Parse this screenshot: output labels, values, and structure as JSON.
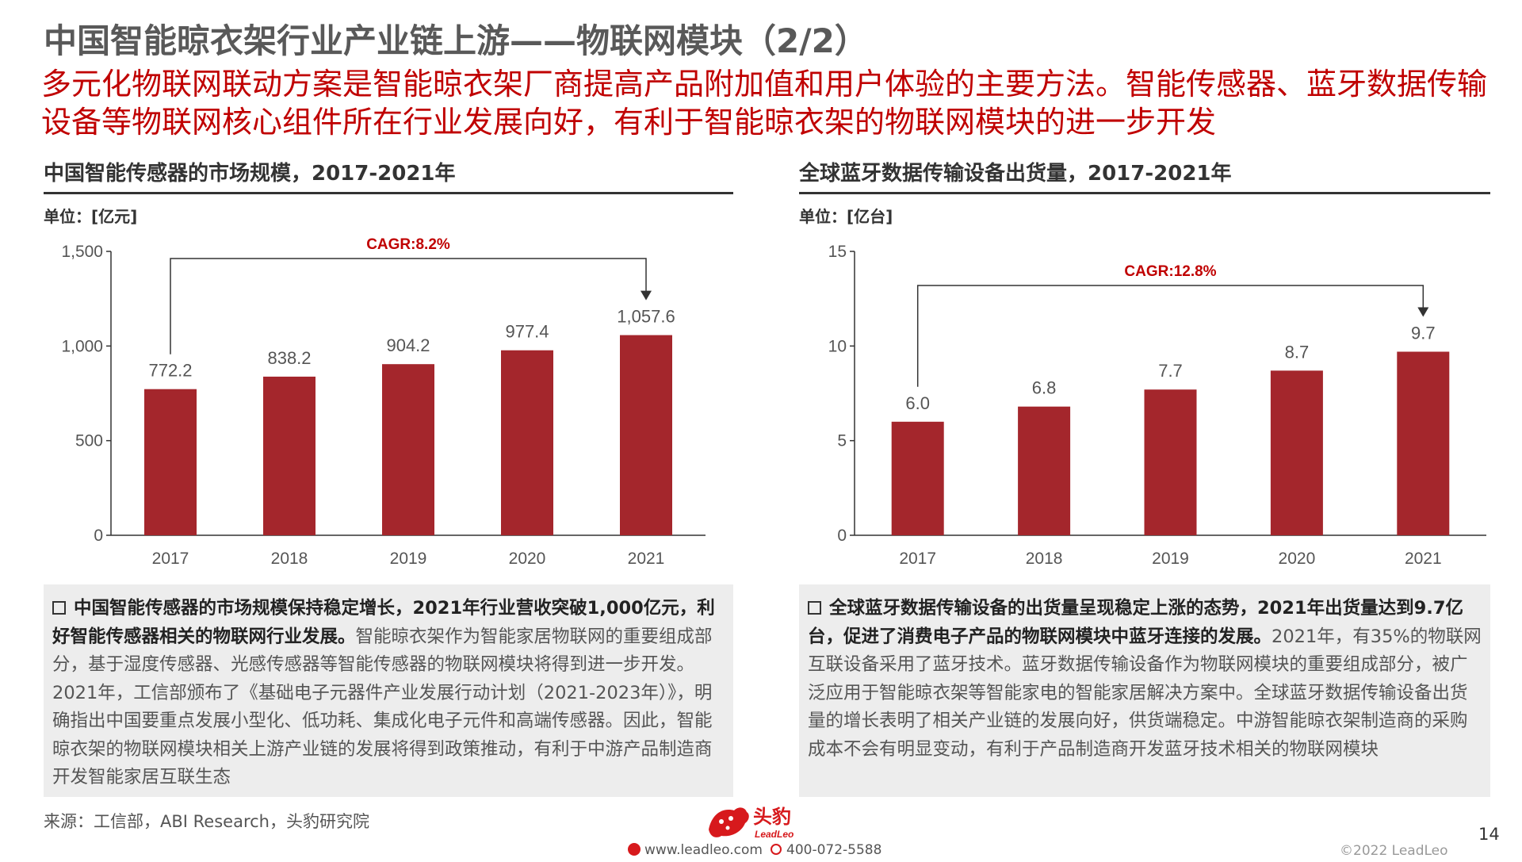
{
  "page": {
    "title": "中国智能晾衣架行业产业链上游——物联网模块（2/2）",
    "subtitle": "多元化物联网联动方案是智能晾衣架厂商提高产品附加值和用户体验的主要方法。智能传感器、蓝牙数据传输设备等物联网核心组件所在行业发展向好，有利于智能晾衣架的物联网模块的进一步开发",
    "source": "来源：工信部，ABI Research，头豹研究院",
    "page_number": "14",
    "copyright": "©2022 LeadLeo",
    "logo_text": "头豹",
    "logo_sub": "LeadLeo",
    "website": "www.leadleo.com",
    "phone": "400-072-5588"
  },
  "colors": {
    "bar": "#A4262C",
    "accent": "#C00000",
    "note_bg": "#EDEDED"
  },
  "icons": {
    "logo": "leopard-logo-icon",
    "web": "weibo-icon",
    "phone": "phone-icon",
    "bullet": "checkbox-bullet-icon"
  },
  "left_panel": {
    "title": "中国智能传感器的市场规模，2017-2021年",
    "unit": "单位：[亿元]",
    "note_bold": "中国智能传感器的市场规模保持稳定增长，2021年行业营收突破1,000亿元，利好智能传感器相关的物联网行业发展。",
    "note_text": "智能晾衣架作为智能家居物联网的重要组成部分，基于湿度传感器、光感传感器等智能传感器的物联网模块将得到进一步开发。2021年，工信部颁布了《基础电子元器件产业发展行动计划（2021-2023年）》，明确指出中国要重点发展小型化、低功耗、集成化电子元件和高端传感器。因此，智能晾衣架的物联网模块相关上游产业链的发展将得到政策推动，有利于中游产品制造商开发智能家居互联生态"
  },
  "right_panel": {
    "title": "全球蓝牙数据传输设备出货量，2017-2021年",
    "unit": "单位：[亿台]",
    "note_bold": "全球蓝牙数据传输设备的出货量呈现稳定上涨的态势，2021年出货量达到9.7亿台，促进了消费电子产品的物联网模块中蓝牙连接的发展。",
    "note_text": "2021年，有35%的物联网互联设备采用了蓝牙技术。蓝牙数据传输设备作为物联网模块的重要组成部分，被广泛应用于智能晾衣架等智能家电的智能家居解决方案中。全球蓝牙数据传输设备出货量的增长表明了相关产业链的发展向好，供货端稳定。中游智能晾衣架制造商的采购成本不会有明显变动，有利于产品制造商开发蓝牙技术相关的物联网模块"
  },
  "chart_data": [
    {
      "type": "bar",
      "title": "中国智能传感器的市场规模，2017-2021年",
      "ylabel": "单位：[亿元]",
      "categories": [
        "2017",
        "2018",
        "2019",
        "2020",
        "2021"
      ],
      "values": [
        772.2,
        838.2,
        904.2,
        977.4,
        1057.6
      ],
      "value_labels": [
        "772.2",
        "838.2",
        "904.2",
        "977.4",
        "1,057.6"
      ],
      "ylim": [
        0,
        1500
      ],
      "yticks": [
        0,
        500,
        1000,
        1500
      ],
      "ytick_labels": [
        "0",
        "500",
        "1,000",
        "1,500"
      ],
      "annotation": "CAGR:8.2%",
      "grid": false,
      "legend": "none"
    },
    {
      "type": "bar",
      "title": "全球蓝牙数据传输设备出货量，2017-2021年",
      "ylabel": "单位：[亿台]",
      "categories": [
        "2017",
        "2018",
        "2019",
        "2020",
        "2021"
      ],
      "values": [
        6.0,
        6.8,
        7.7,
        8.7,
        9.7
      ],
      "value_labels": [
        "6.0",
        "6.8",
        "7.7",
        "8.7",
        "9.7"
      ],
      "ylim": [
        0,
        15
      ],
      "yticks": [
        0,
        5,
        10,
        15
      ],
      "ytick_labels": [
        "0",
        "5",
        "10",
        "15"
      ],
      "annotation": "CAGR:12.8%",
      "grid": false,
      "legend": "none"
    }
  ]
}
